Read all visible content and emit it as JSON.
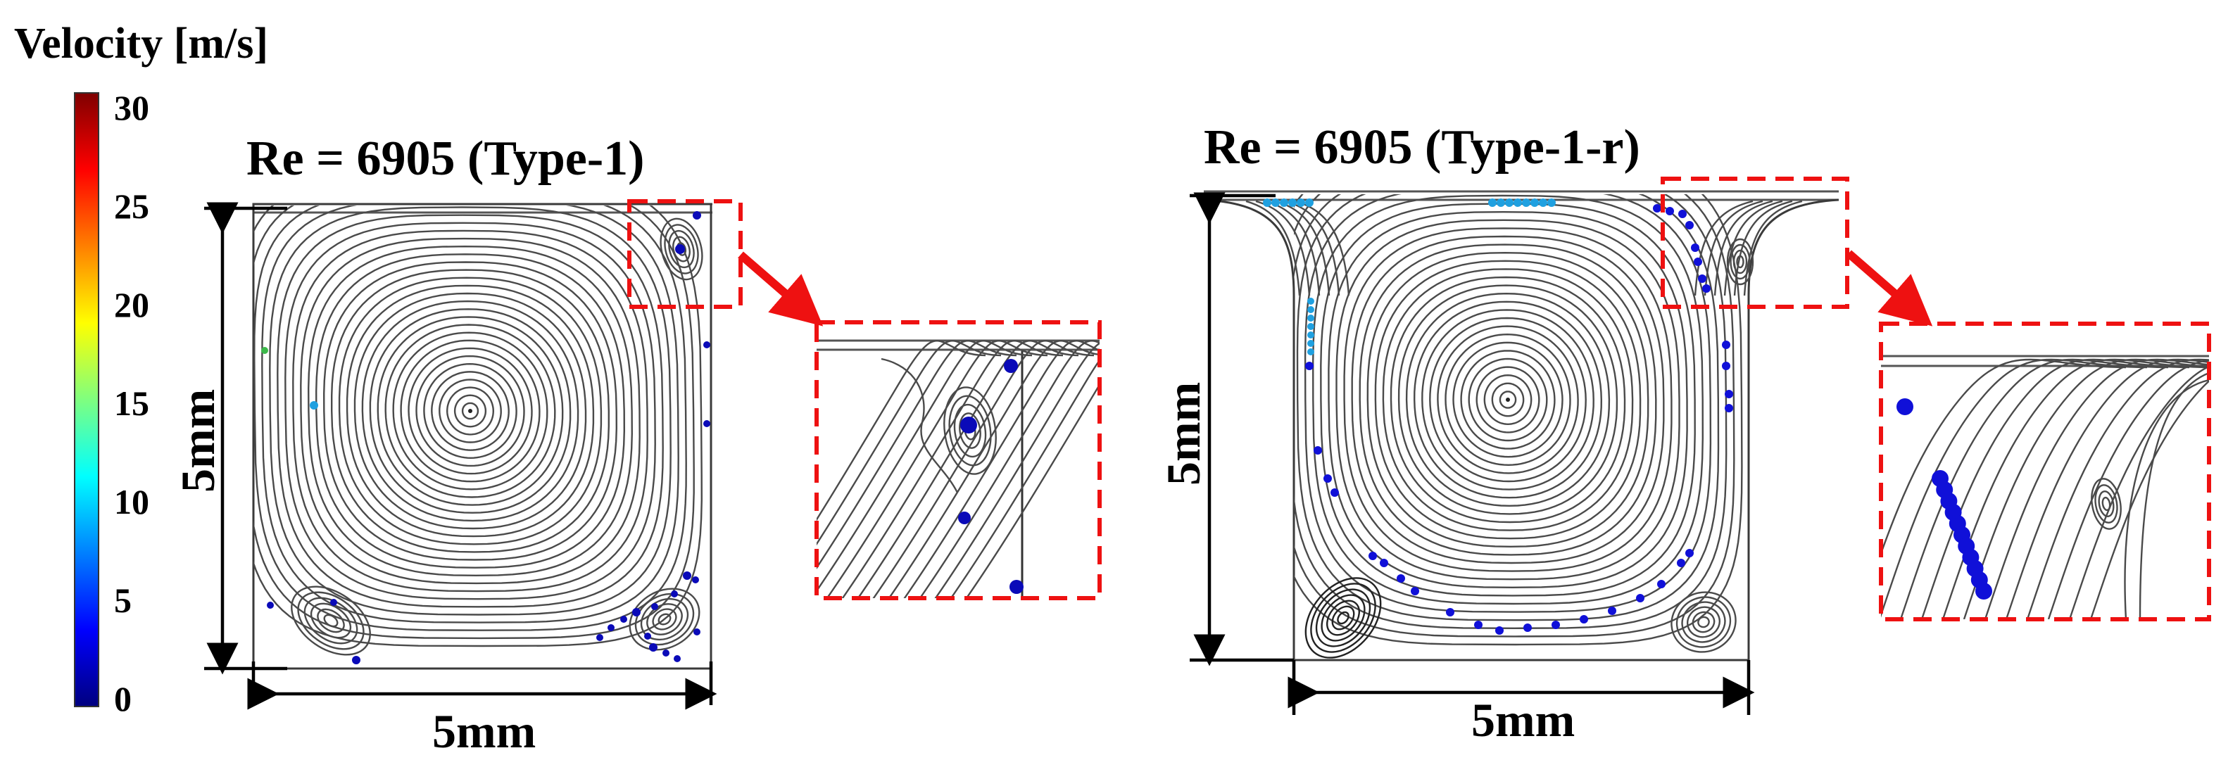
{
  "colorbar": {
    "title": "Velocity [m/s]",
    "ticks": [
      "30",
      "25",
      "20",
      "15",
      "10",
      "5",
      "0"
    ],
    "min": 0,
    "max": 30,
    "colors": [
      "#00007f",
      "#0000ff",
      "#0080ff",
      "#00e5ff",
      "#7fff7f",
      "#ffff00",
      "#ff8000",
      "#ff0000",
      "#7f0000"
    ]
  },
  "panels": [
    {
      "title": "Re = 6905 (Type-1)",
      "width_label": "5mm",
      "height_label": "5mm"
    },
    {
      "title": "Re = 6905 (Type-1-r)",
      "width_label": "5mm",
      "height_label": "5mm"
    }
  ],
  "colors": {
    "zoom_box": "#ee1111",
    "streamline": "#4a4a4a",
    "particle_slow": "#0a0ab8",
    "particle_mid": "#1fa0e0",
    "particle_green": "#3cb84a"
  }
}
